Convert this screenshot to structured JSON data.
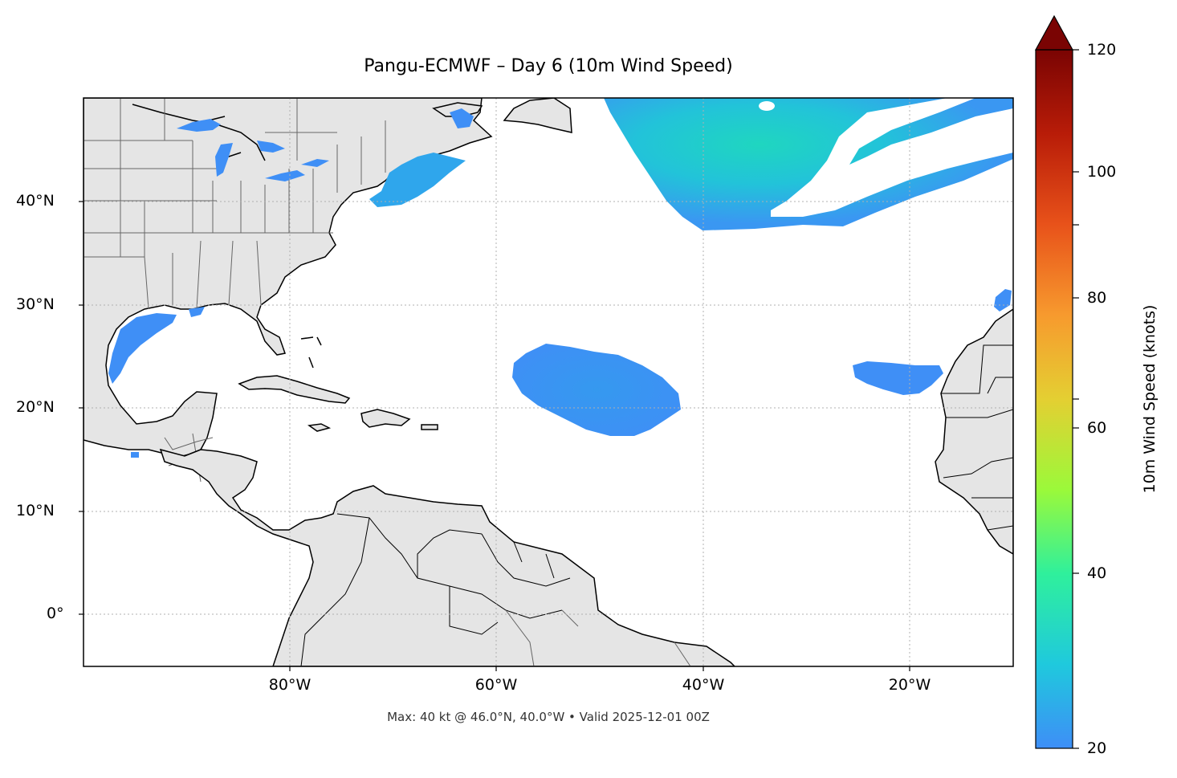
{
  "title": "Pangu-ECMWF – Day 6 (10m Wind Speed)",
  "footer": "Max: 40 kt @ 46.0°N, 40.0°W • Valid 2025-12-01 00Z",
  "map": {
    "extent_lon": [
      -100,
      -10
    ],
    "extent_lat": [
      -5,
      50
    ],
    "lat_labels": [
      {
        "lat": 40,
        "label": "40°N"
      },
      {
        "lat": 30,
        "label": "30°N"
      },
      {
        "lat": 20,
        "label": "20°N"
      },
      {
        "lat": 10,
        "label": "10°N"
      },
      {
        "lat": 0,
        "label": "0°"
      }
    ],
    "lon_labels": [
      {
        "lon": -80,
        "label": "80°W"
      },
      {
        "lon": -60,
        "label": "60°W"
      },
      {
        "lon": -40,
        "label": "40°W"
      },
      {
        "lon": -20,
        "label": "20°W"
      }
    ],
    "land_color": "#e5e5e5",
    "gridlines": "dotted"
  },
  "colorbar": {
    "label": "10m Wind Speed (knots)",
    "range": [
      20,
      120
    ],
    "extend": "max",
    "ticks": [
      "20",
      "40",
      "60",
      "80",
      "100",
      "120"
    ],
    "tick_values": [
      20,
      40,
      60,
      80,
      100,
      120
    ],
    "colormap": [
      "#3e8ef7",
      "#1fc9dd",
      "#2ff09c",
      "#9bf93a",
      "#e4cf32",
      "#f79a2e",
      "#e8521a",
      "#b81c08",
      "#7a0403"
    ]
  },
  "colors": {
    "wind_low": "#3f8ff6",
    "wind_mid": "#28b4e8",
    "wind_high": "#1ad6c4"
  }
}
